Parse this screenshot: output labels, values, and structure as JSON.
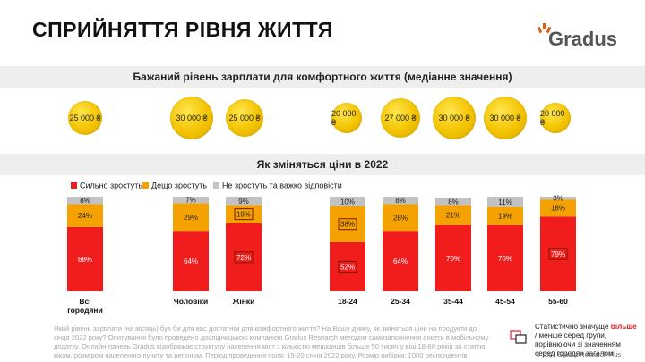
{
  "title": "СПРИЙНЯТТЯ РІВНЯ ЖИТТЯ",
  "logo": {
    "text": "Gradus",
    "accent_color": "#e8590c"
  },
  "salary_section": {
    "heading": "Бажаний рівень зарплати для комфортного життя (медіанне значення)",
    "coins": [
      "25 000 ₴",
      "30 000 ₴",
      "25 000 ₴",
      "20 000 ₴",
      "27 000 ₴",
      "30 000 ₴",
      "30 000 ₴",
      "20 000 ₴"
    ]
  },
  "prices_section": {
    "heading": "Як зміняться ціни в 2022"
  },
  "chart_data": {
    "type": "bar",
    "stacked": true,
    "categories": [
      "Всі\nгородяни",
      "Чоловіки",
      "Жінки",
      "18-24",
      "25-34",
      "35-44",
      "45-54",
      "55-60"
    ],
    "series": [
      {
        "name": "Сильно зростуть",
        "color": "#f11c1c",
        "values": [
          68,
          64,
          72,
          52,
          64,
          70,
          70,
          79
        ]
      },
      {
        "name": "Дещо зростуть",
        "color": "#f5a100",
        "values": [
          24,
          29,
          19,
          38,
          28,
          21,
          19,
          18
        ]
      },
      {
        "name": "Не зростуть та важко відповісти",
        "color": "#c2c2c2",
        "values": [
          8,
          7,
          9,
          10,
          8,
          8,
          11,
          3
        ]
      }
    ],
    "boxed_labels": [
      {
        "category": "Жінки",
        "series": "Сильно зростуть"
      },
      {
        "category": "Жінки",
        "series": "Дещо зростуть"
      },
      {
        "category": "18-24",
        "series": "Сильно зростуть"
      },
      {
        "category": "18-24",
        "series": "Дещо зростуть"
      },
      {
        "category": "55-60",
        "series": "Сильно зростуть"
      }
    ],
    "ylim": [
      0,
      100
    ],
    "legend_position": "top-left"
  },
  "footnote": "Який рівень зарплати (на місяць) був би для вас достатнім для комфортного життя? На Вашу думку, як зміняться ціни на продукти до кінця 2022 року? Опитування було проведено дослідницькою компанією Gradus Research методом самозаповнення анкети в мобільному додатку. Онлайн-панель Gradus відображає структуру населення міст з кількістю мешканців більше 50 тисяч у віці 18-60 років за статтю, віком, розміром населеного пункту та регіоном. Період проведення поля: 19-20 січня 2022 року. Розмір вибірки: 1000 респондентів",
  "significance_note": {
    "part1": "Статистично значуще ",
    "more": "більше",
    "part2": " / менше серед групи, порівнюючи зі значенням серед городян загалом"
  },
  "copyright": "© 2021 Gradus Research Plus"
}
